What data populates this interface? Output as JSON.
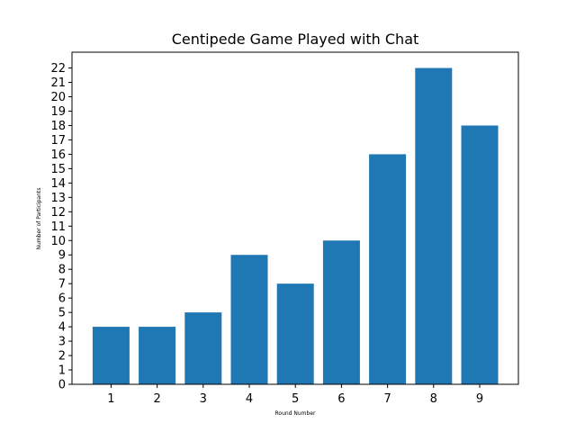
{
  "chart_data": {
    "type": "bar",
    "title": "Centipede Game Played with Chat",
    "xlabel": "Round Number",
    "ylabel": "Number of Participants",
    "categories": [
      "1",
      "2",
      "3",
      "4",
      "5",
      "6",
      "7",
      "8",
      "9"
    ],
    "values": [
      4,
      4,
      5,
      9,
      7,
      10,
      16,
      22,
      18
    ],
    "ylim": [
      0,
      23.1
    ],
    "yticks": [
      0,
      1,
      2,
      3,
      4,
      5,
      6,
      7,
      8,
      9,
      10,
      11,
      12,
      13,
      14,
      15,
      16,
      17,
      18,
      19,
      20,
      21,
      22
    ],
    "bar_color": "#1f77b4",
    "grid": false,
    "legend": "none"
  }
}
